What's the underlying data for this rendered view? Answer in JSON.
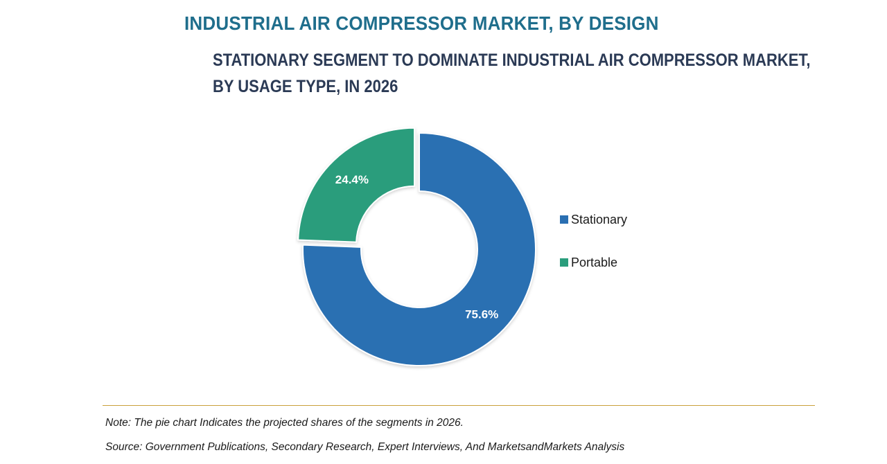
{
  "header": {
    "title": "INDUSTRIAL AIR COMPRESSOR MARKET, BY DESIGN",
    "subtitle_line1": "STATIONARY SEGMENT TO DOMINATE INDUSTRIAL AIR COMPRESSOR MARKET,",
    "subtitle_line2": "BY USAGE TYPE, IN 2026"
  },
  "chart_data": {
    "type": "pie",
    "variant": "donut",
    "title": "STATIONARY SEGMENT TO DOMINATE INDUSTRIAL AIR COMPRESSOR MARKET, BY USAGE TYPE, IN 2026",
    "categories": [
      "Stationary",
      "Portable"
    ],
    "values": [
      75.6,
      24.4
    ],
    "labels": [
      "75.6%",
      "24.4%"
    ],
    "colors": [
      "#2a6fb2",
      "#2a9d7c"
    ],
    "exploded": [
      false,
      true
    ],
    "legend_position": "right"
  },
  "legend": {
    "items": [
      {
        "label": "Stationary",
        "color": "#2a6fb2"
      },
      {
        "label": "Portable",
        "color": "#2a9d7c"
      }
    ]
  },
  "footer": {
    "note": "Note: The pie chart Indicates the projected shares of the segments in 2026.",
    "source": "Source: Government Publications, Secondary Research, Expert Interviews, And MarketsandMarkets Analysis"
  },
  "colors": {
    "title": "#1f6e8c",
    "subtitle": "#2b3a55",
    "rule": "#c9a13b"
  }
}
